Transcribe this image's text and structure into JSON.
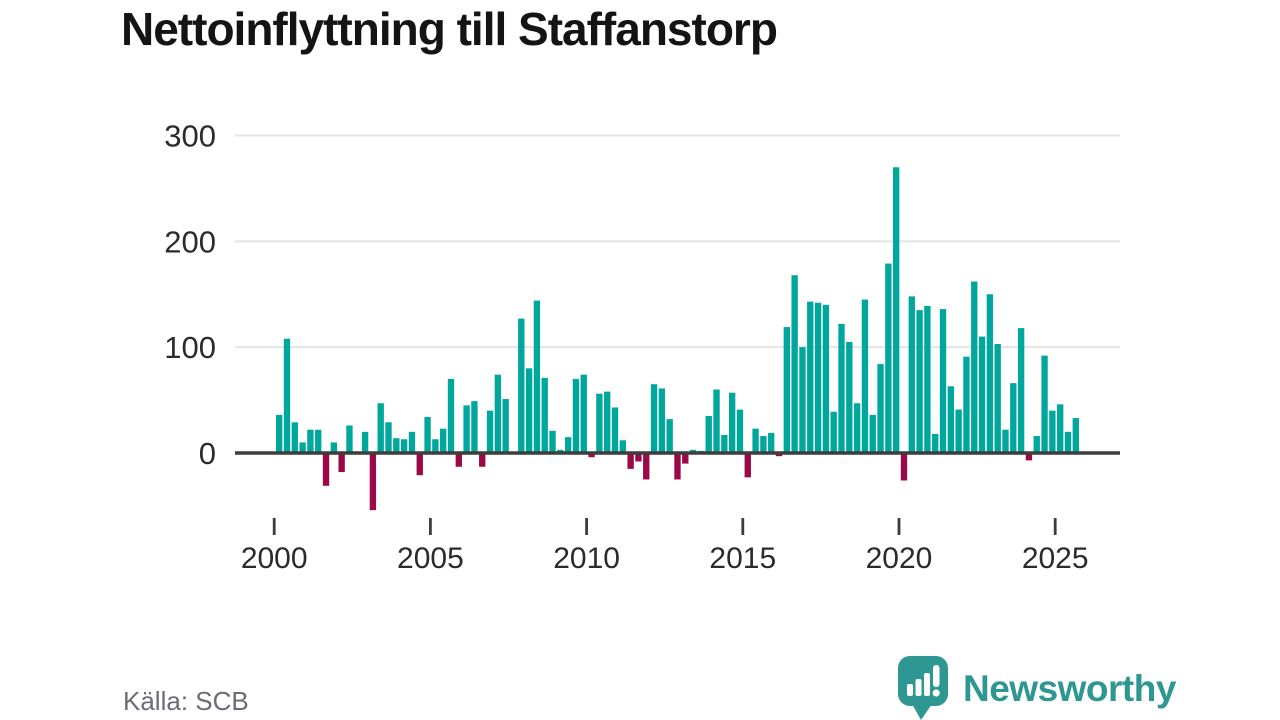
{
  "title": "Nettoinflyttning till Staffanstorp",
  "source": "Källa: SCB",
  "branding": {
    "logo_text": "Newsworthy",
    "logo_icon": "speech-bubble-bar-chart-icon"
  },
  "colors": {
    "positive_bar": "#00a79c",
    "negative_bar": "#9b0a46",
    "axis": "#3d3d3d",
    "gridline": "#e4e4e4",
    "axis_label": "#2b2b2b",
    "title_text": "#141414",
    "source_text": "#6c6c76",
    "logo": "#2f9791"
  },
  "chart_data": {
    "type": "bar",
    "title": "Nettoinflyttning till Staffanstorp",
    "frequency": "quarterly",
    "start": "2000 Q1",
    "end": "2025 Q3",
    "x_ticks": [
      2000,
      2005,
      2010,
      2015,
      2020,
      2025
    ],
    "y_ticks": [
      0,
      100,
      200,
      300
    ],
    "ylim": [
      -60,
      300
    ],
    "grid": "horizontal",
    "legend": "none",
    "quarters": [
      "2000Q1",
      "2000Q2",
      "2000Q3",
      "2000Q4",
      "2001Q1",
      "2001Q2",
      "2001Q3",
      "2001Q4",
      "2002Q1",
      "2002Q2",
      "2002Q3",
      "2002Q4",
      "2003Q1",
      "2003Q2",
      "2003Q3",
      "2003Q4",
      "2004Q1",
      "2004Q2",
      "2004Q3",
      "2004Q4",
      "2005Q1",
      "2005Q2",
      "2005Q3",
      "2005Q4",
      "2006Q1",
      "2006Q2",
      "2006Q3",
      "2006Q4",
      "2007Q1",
      "2007Q2",
      "2007Q3",
      "2007Q4",
      "2008Q1",
      "2008Q2",
      "2008Q3",
      "2008Q4",
      "2009Q1",
      "2009Q2",
      "2009Q3",
      "2009Q4",
      "2010Q1",
      "2010Q2",
      "2010Q3",
      "2010Q4",
      "2011Q1",
      "2011Q2",
      "2011Q3",
      "2011Q4",
      "2012Q1",
      "2012Q2",
      "2012Q3",
      "2012Q4",
      "2013Q1",
      "2013Q2",
      "2013Q3",
      "2013Q4",
      "2014Q1",
      "2014Q2",
      "2014Q3",
      "2014Q4",
      "2015Q1",
      "2015Q2",
      "2015Q3",
      "2015Q4",
      "2016Q1",
      "2016Q2",
      "2016Q3",
      "2016Q4",
      "2017Q1",
      "2017Q2",
      "2017Q3",
      "2017Q4",
      "2018Q1",
      "2018Q2",
      "2018Q3",
      "2018Q4",
      "2019Q1",
      "2019Q2",
      "2019Q3",
      "2019Q4",
      "2020Q1",
      "2020Q2",
      "2020Q3",
      "2020Q4",
      "2021Q1",
      "2021Q2",
      "2021Q3",
      "2021Q4",
      "2022Q1",
      "2022Q2",
      "2022Q3",
      "2022Q4",
      "2023Q1",
      "2023Q2",
      "2023Q3",
      "2023Q4",
      "2024Q1",
      "2024Q2",
      "2024Q3",
      "2024Q4",
      "2025Q1",
      "2025Q2",
      "2025Q3"
    ],
    "values": [
      36,
      108,
      29,
      10,
      22,
      22,
      -31,
      10,
      -18,
      26,
      1,
      20,
      -54,
      47,
      29,
      14,
      13,
      20,
      -21,
      34,
      13,
      23,
      70,
      -13,
      45,
      49,
      -13,
      40,
      74,
      51,
      1,
      127,
      80,
      144,
      71,
      21,
      3,
      15,
      70,
      74,
      -4,
      56,
      58,
      43,
      12,
      -15,
      -8,
      -25,
      65,
      61,
      32,
      -25,
      -10,
      3,
      2,
      35,
      60,
      17,
      57,
      41,
      -23,
      23,
      16,
      19,
      -3,
      119,
      168,
      100,
      143,
      142,
      140,
      39,
      122,
      105,
      47,
      145,
      36,
      84,
      179,
      270,
      -26,
      148,
      135,
      139,
      18,
      136,
      63,
      41,
      91,
      162,
      110,
      150,
      103,
      22,
      66,
      118,
      -7,
      16,
      92,
      40,
      46,
      20,
      33
    ]
  }
}
